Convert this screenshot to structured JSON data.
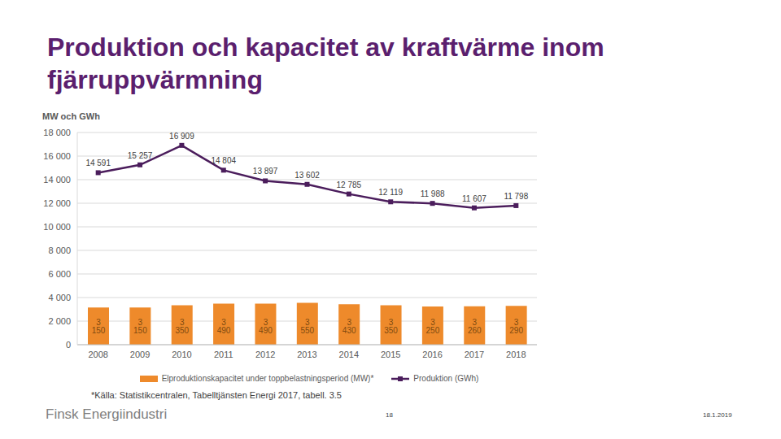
{
  "chart_data": {
    "type": "bar",
    "title": "Produktion och kapacitet av kraftvärme inom fjärruppvärmning",
    "y_label": "MW och GWh",
    "categories": [
      "2008",
      "2009",
      "2010",
      "2011",
      "2012",
      "2013",
      "2014",
      "2015",
      "2016",
      "2017",
      "2018"
    ],
    "series": [
      {
        "name": "Elproduktionskapacitet under toppbelastningsperiod (MW)*",
        "type": "bar",
        "color": "#ee8a2b",
        "values": [
          3150,
          3150,
          3350,
          3490,
          3490,
          3550,
          3430,
          3350,
          3250,
          3260,
          3290
        ],
        "value_labels": [
          "3 150",
          "3 150",
          "3 350",
          "3 490",
          "3 490",
          "3 550",
          "3 430",
          "3 350",
          "3 250",
          "3 260",
          "3 290"
        ]
      },
      {
        "name": "Produktion (GWh)",
        "type": "line",
        "color": "#4b1d5c",
        "marker": "square",
        "line_style": "solid",
        "values": [
          14591,
          15257,
          16909,
          14804,
          13897,
          13602,
          12785,
          12119,
          11988,
          11607,
          11798
        ],
        "value_labels": [
          "14 591",
          "15 257",
          "16 909",
          "14 804",
          "13 897",
          "13 602",
          "12 785",
          "12 119",
          "11 988",
          "11 607",
          "11 798"
        ]
      }
    ],
    "ylim": [
      0,
      18000
    ],
    "yticks": [
      0,
      {
        "value": 2000,
        "label": "2 000"
      },
      {
        "value": 4000,
        "label": "4 000"
      },
      {
        "value": 6000,
        "label": "6 000"
      },
      {
        "value": 8000,
        "label": "8 000"
      },
      {
        "value": 10000,
        "label": "10 000"
      },
      {
        "value": 12000,
        "label": "12 000"
      },
      {
        "value": 14000,
        "label": "14 000"
      },
      {
        "value": 16000,
        "label": "16 000"
      },
      {
        "value": 18000,
        "label": "18 000"
      }
    ],
    "grid": true,
    "legend": "bottom",
    "data_labels": true
  },
  "slide": {
    "source": "*Källa: Statistikcentralen, Tabelltjänsten Energi 2017, tabell. 3.5",
    "brand": "Finsk Energiindustri",
    "page": 18,
    "date": "18.1.2019"
  }
}
